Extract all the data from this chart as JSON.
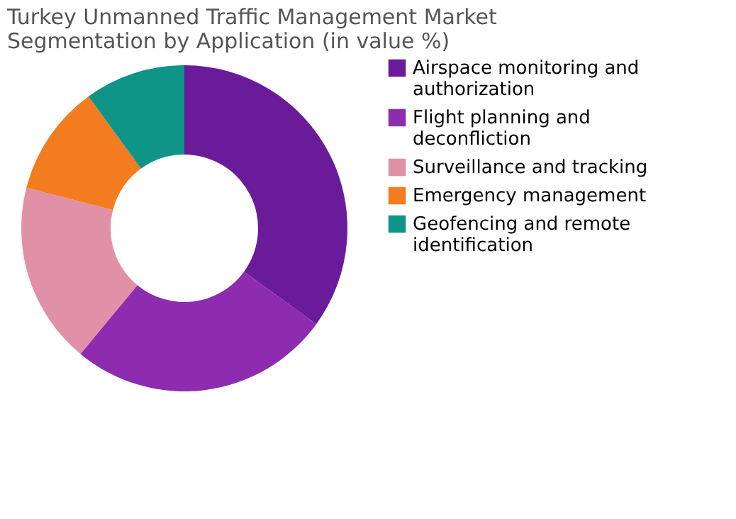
{
  "chart_data": {
    "type": "donut",
    "title": [
      "Turkey Unmanned Traffic Management Market",
      "Segmentation by Application (in value %)"
    ],
    "categories": [
      "Airspace monitoring and authorization",
      "Flight planning and deconfliction",
      "Surveillance and tracking",
      "Emergency management",
      "Geofencing and remote identification"
    ],
    "values": [
      35,
      26,
      18,
      11,
      10
    ],
    "colors": [
      "#6a1b9a",
      "#8e2cb0",
      "#e091a8",
      "#f47c20",
      "#0f9488"
    ],
    "legend": "right"
  }
}
